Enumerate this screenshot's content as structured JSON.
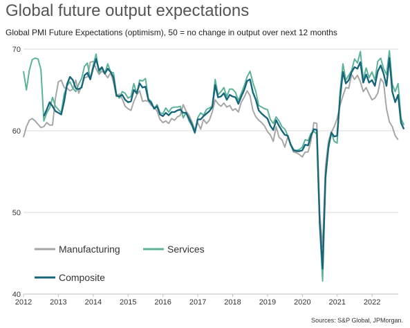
{
  "title": "Global future output expectations",
  "subtitle": "Global PMI Future Expectations (optimism), 50 = no change in output over next 12 months",
  "source": "Sources: S&P Global, JPMorgan.",
  "chart_data": {
    "type": "line",
    "ylim": [
      40,
      70
    ],
    "yticks": [
      40,
      50,
      60,
      70
    ],
    "xlim": [
      2012.0,
      2022.75
    ],
    "xticks": [
      "2012",
      "2013",
      "2014",
      "2015",
      "2016",
      "2017",
      "2018",
      "2019",
      "2020",
      "2021",
      "2022"
    ],
    "grid": "horizontal",
    "legend_position": "bottom-left",
    "colors": {
      "Manufacturing": "#a6a6a6",
      "Services": "#5bb39a",
      "Composite": "#17657a"
    },
    "x_start": 2012.0,
    "x_step": 0.0833,
    "series": [
      {
        "name": "Manufacturing",
        "values": [
          59.2,
          60.5,
          61.3,
          61.5,
          61.2,
          60.8,
          60.4,
          60.5,
          61.0,
          60.7,
          60.7,
          64.0,
          66.0,
          66.2,
          65.3,
          65.2,
          64.9,
          65.1,
          66.2,
          64.6,
          65.5,
          66.5,
          66.6,
          68.4,
          68.5,
          67.6,
          66.9,
          67.3,
          67.0,
          66.5,
          67.1,
          65.9,
          64.2,
          64.5,
          63.9,
          63.0,
          62.7,
          62.5,
          63.6,
          64.4,
          64.9,
          63.6,
          63.7,
          63.6,
          63.1,
          62.9,
          62.4,
          61.4,
          61.0,
          61.2,
          60.9,
          61.5,
          61.3,
          61.7,
          61.9,
          63.2,
          62.4,
          61.9,
          61.1,
          60.1,
          61.0,
          60.2,
          61.4,
          60.9,
          61.3,
          62.3,
          63.8,
          63.3,
          63.0,
          63.4,
          62.9,
          63.1,
          62.5,
          62.7,
          62.3,
          63.5,
          64.1,
          64.9,
          64.3,
          62.5,
          61.7,
          61.3,
          61.0,
          60.6,
          59.9,
          59.5,
          58.7,
          60.5,
          59.2,
          58.9,
          58.0,
          59.3,
          58.3,
          57.4,
          57.3,
          57.1,
          56.8,
          57.4,
          57.4,
          58.8,
          61.0,
          60.9,
          49.9,
          45.7,
          55.6,
          58.7,
          59.8,
          60.5,
          61.5,
          63.1,
          64.3,
          65.3,
          65.2,
          66.9,
          66.3,
          66.8,
          66.0,
          64.8,
          65.3,
          64.5,
          63.8,
          64.0,
          64.6,
          66.4,
          65.9,
          62.7,
          61.1,
          60.5,
          59.4,
          58.9
        ]
      },
      {
        "name": "Services",
        "values": [
          67.3,
          65.0,
          67.4,
          68.7,
          68.9,
          68.8,
          67.5,
          61.2,
          62.2,
          62.8,
          64.1,
          63.0,
          62.6,
          62.2,
          64.5,
          65.5,
          66.0,
          65.2,
          64.8,
          65.7,
          66.4,
          67.9,
          68.3,
          66.3,
          68.0,
          69.4,
          67.1,
          67.7,
          67.0,
          68.2,
          67.2,
          67.1,
          64.5,
          64.0,
          64.8,
          64.6,
          64.0,
          64.2,
          65.8,
          64.5,
          66.2,
          66.1,
          66.4,
          63.9,
          63.6,
          62.7,
          63.2,
          62.2,
          62.1,
          62.8,
          62.3,
          62.8,
          62.9,
          62.9,
          63.0,
          61.6,
          62.2,
          61.2,
          60.6,
          59.7,
          61.6,
          62.2,
          61.9,
          62.6,
          62.8,
          63.0,
          66.3,
          64.4,
          64.8,
          65.3,
          64.2,
          65.1,
          65.1,
          64.7,
          63.7,
          64.6,
          65.5,
          66.6,
          67.3,
          65.9,
          64.8,
          63.1,
          62.9,
          62.7,
          62.6,
          61.4,
          60.9,
          61.7,
          61.2,
          60.5,
          60.2,
          59.4,
          58.4,
          57.7,
          57.6,
          57.7,
          58.0,
          58.9,
          58.8,
          59.7,
          59.9,
          59.6,
          48.4,
          41.6,
          53.9,
          58.3,
          59.8,
          58.7,
          58.5,
          64.7,
          68.2,
          66.2,
          66.8,
          67.4,
          68.8,
          68.3,
          69.7,
          66.3,
          67.7,
          66.5,
          67.2,
          66.2,
          68.5,
          68.9,
          67.6,
          66.9,
          69.8,
          65.7,
          64.8,
          65.8,
          61.5,
          60.7
        ]
      },
      {
        "name": "Composite",
        "values": [
          null,
          null,
          null,
          null,
          null,
          null,
          null,
          61.8,
          62.6,
          63.5,
          63.0,
          62.4,
          62.2,
          62.0,
          63.6,
          65.7,
          66.6,
          66.2,
          65.2,
          65.1,
          65.3,
          66.8,
          67.1,
          66.3,
          67.7,
          68.8,
          67.4,
          67.8,
          67.0,
          67.6,
          67.2,
          66.5,
          64.3,
          64.2,
          64.4,
          63.8,
          63.5,
          63.6,
          65.0,
          64.6,
          65.8,
          65.3,
          65.4,
          63.8,
          63.4,
          62.7,
          63.0,
          62.0,
          61.8,
          62.2,
          61.9,
          62.3,
          62.3,
          62.5,
          62.6,
          62.2,
          62.2,
          61.5,
          60.8,
          59.8,
          61.4,
          61.4,
          61.8,
          62.1,
          62.4,
          62.9,
          65.6,
          64.1,
          64.2,
          64.6,
          63.8,
          64.4,
          64.2,
          64.1,
          63.3,
          64.2,
          65.0,
          66.1,
          66.3,
          64.7,
          63.8,
          62.5,
          62.1,
          61.8,
          61.5,
          60.6,
          60.1,
          61.3,
          60.6,
          60.0,
          59.5,
          59.4,
          58.3,
          57.6,
          57.5,
          57.5,
          57.6,
          58.3,
          58.2,
          59.4,
          60.2,
          60.1,
          48.7,
          43.1,
          54.4,
          57.9,
          59.8,
          59.3,
          59.4,
          64.0,
          67.2,
          65.8,
          66.2,
          67.2,
          67.8,
          67.6,
          68.4,
          65.9,
          66.9,
          65.9,
          66.2,
          65.5,
          67.3,
          68.0,
          67.0,
          65.5,
          68.9,
          64.8,
          63.5,
          64.4,
          61.0,
          60.2
        ]
      }
    ]
  }
}
